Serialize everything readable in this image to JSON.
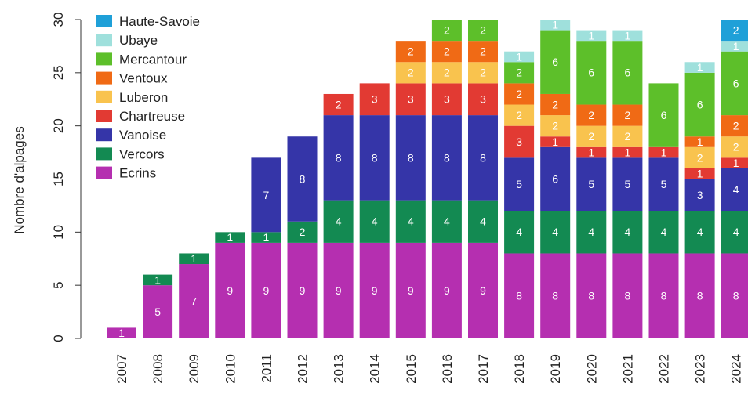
{
  "chart_data": {
    "type": "bar",
    "stacked": true,
    "title": "",
    "xlabel": "",
    "ylabel": "Nombre d'alpages",
    "ylim": [
      0,
      30
    ],
    "yticks": [
      0,
      5,
      10,
      15,
      20,
      25,
      30
    ],
    "grid": false,
    "legend_position": "top-left",
    "categories": [
      "2007",
      "2008",
      "2009",
      "2010",
      "2011",
      "2012",
      "2013",
      "2014",
      "2015",
      "2016",
      "2017",
      "2018",
      "2019",
      "2020",
      "2021",
      "2022",
      "2023",
      "2024"
    ],
    "series": [
      {
        "name": "Ecrins",
        "color": "#b52fb0",
        "values": [
          1,
          5,
          7,
          9,
          9,
          9,
          9,
          9,
          9,
          9,
          9,
          8,
          8,
          8,
          8,
          8,
          8,
          8
        ]
      },
      {
        "name": "Vercors",
        "color": "#138a52",
        "values": [
          0,
          1,
          1,
          1,
          1,
          2,
          4,
          4,
          4,
          4,
          4,
          4,
          4,
          4,
          4,
          4,
          4,
          4
        ]
      },
      {
        "name": "Vanoise",
        "color": "#3535a8",
        "values": [
          0,
          0,
          0,
          0,
          7,
          8,
          8,
          8,
          8,
          8,
          8,
          5,
          6,
          5,
          5,
          5,
          3,
          4
        ]
      },
      {
        "name": "Chartreuse",
        "color": "#e23a33",
        "values": [
          0,
          0,
          0,
          0,
          0,
          0,
          2,
          3,
          3,
          3,
          3,
          3,
          1,
          1,
          1,
          1,
          1,
          1
        ]
      },
      {
        "name": "Luberon",
        "color": "#f9c34e",
        "values": [
          0,
          0,
          0,
          0,
          0,
          0,
          0,
          0,
          2,
          2,
          2,
          2,
          2,
          2,
          2,
          0,
          2,
          2
        ]
      },
      {
        "name": "Ventoux",
        "color": "#f06a15",
        "values": [
          0,
          0,
          0,
          0,
          0,
          0,
          0,
          0,
          2,
          2,
          2,
          2,
          2,
          2,
          2,
          0,
          1,
          2
        ]
      },
      {
        "name": "Mercantour",
        "color": "#5dbf2a",
        "values": [
          0,
          0,
          0,
          0,
          0,
          0,
          0,
          0,
          0,
          2,
          2,
          2,
          6,
          6,
          6,
          6,
          6,
          6
        ]
      },
      {
        "name": "Ubaye",
        "color": "#9fe0dc",
        "values": [
          0,
          0,
          0,
          0,
          0,
          0,
          0,
          0,
          0,
          0,
          0,
          1,
          1,
          1,
          1,
          0,
          1,
          1
        ]
      },
      {
        "name": "Haute-Savoie",
        "color": "#1fa0d8",
        "values": [
          0,
          0,
          0,
          0,
          0,
          0,
          0,
          0,
          0,
          0,
          0,
          0,
          0,
          0,
          0,
          0,
          0,
          2
        ]
      }
    ]
  }
}
